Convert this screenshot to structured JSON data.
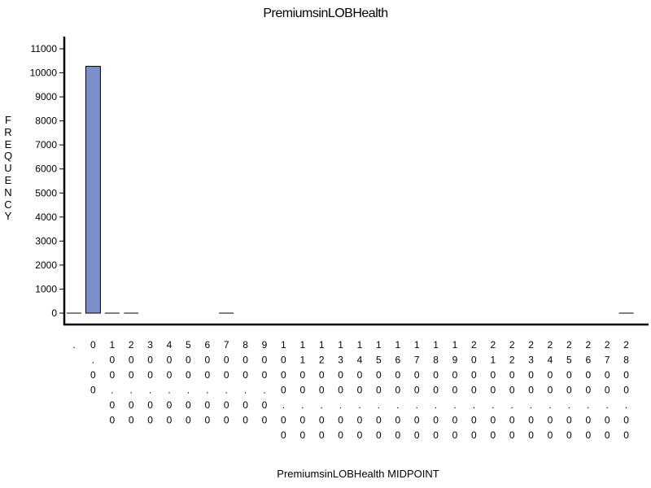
{
  "chart_data": {
    "type": "bar",
    "title": "PremiumsinLOBHealth",
    "xlabel": "PremiumsinLOBHealth MIDPOINT",
    "ylabel": "FREQUENCY",
    "ylim": [
      0,
      11000
    ],
    "yticks": [
      0,
      1000,
      2000,
      3000,
      4000,
      5000,
      6000,
      7000,
      8000,
      9000,
      10000,
      11000
    ],
    "categories": [
      ".",
      "0.00",
      "100.00",
      "200.00",
      "300.00",
      "400.00",
      "500.00",
      "600.00",
      "700.00",
      "800.00",
      "900.00",
      "1000.00",
      "1100.00",
      "1200.00",
      "1300.00",
      "1400.00",
      "1500.00",
      "1600.00",
      "1700.00",
      "1800.00",
      "1900.00",
      "2000.00",
      "2100.00",
      "2200.00",
      "2300.00",
      "2400.00",
      "2500.00",
      "2600.00",
      "2700.00",
      "2800.00"
    ],
    "values": [
      10,
      10270,
      10,
      10,
      0,
      0,
      0,
      0,
      10,
      0,
      0,
      0,
      0,
      0,
      0,
      0,
      0,
      0,
      0,
      0,
      0,
      0,
      0,
      0,
      0,
      0,
      0,
      0,
      0,
      10
    ],
    "bar_color": "#7b8fc8",
    "grid": false
  }
}
